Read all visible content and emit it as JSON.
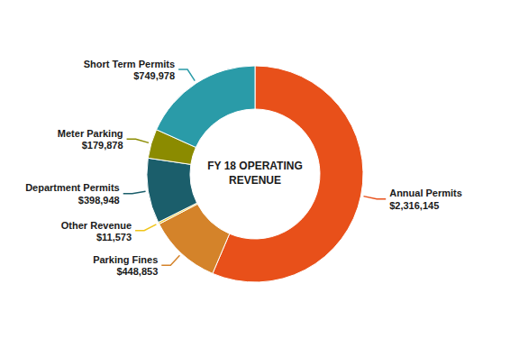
{
  "chart_data": {
    "type": "donut",
    "title": "FY 18 OPERATING\nREVENUE",
    "categories": [
      "Annual Permits",
      "Parking Fines",
      "Other Revenue",
      "Department Permits",
      "Meter Parking",
      "Short Term Permits"
    ],
    "values": [
      2316145,
      448853,
      11573,
      398948,
      179878,
      749978
    ],
    "value_labels": [
      "$2,316,145",
      "$448,853",
      "$11,573",
      "$398,948",
      "$179,878",
      "$749,978"
    ],
    "colors": [
      "#E8501A",
      "#D4832A",
      "#F0C419",
      "#1B5E6B",
      "#8B8B00",
      "#2A9BA8"
    ]
  }
}
